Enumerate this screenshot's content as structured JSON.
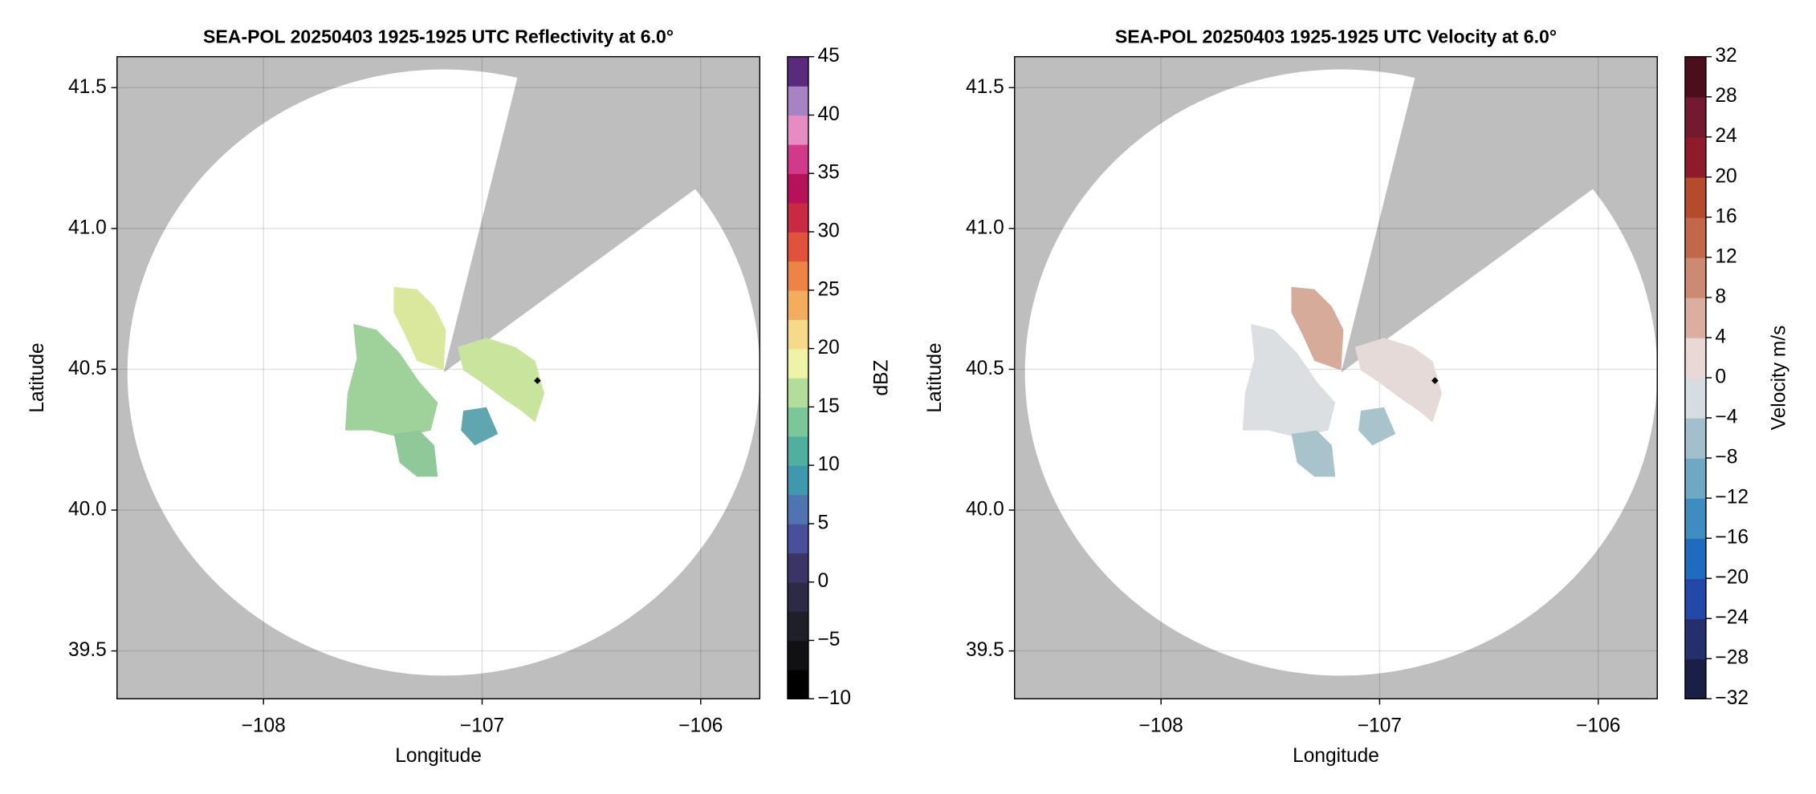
{
  "chart_data": [
    {
      "type": "radar-ppi",
      "title": "SEA-POL 20250403 1925-1925 UTC Reflectivity at 6.0°",
      "xlabel": "Longitude",
      "ylabel": "Latitude",
      "xlim": [
        -108.67,
        -105.73
      ],
      "ylim": [
        39.33,
        41.61
      ],
      "xticks": [
        {
          "value": -108,
          "label": "−108"
        },
        {
          "value": -107,
          "label": "−107"
        },
        {
          "value": -106,
          "label": "−106"
        }
      ],
      "yticks": [
        39.5,
        {
          "value": 40,
          "label": "40.0"
        },
        40.5,
        {
          "value": 41,
          "label": "41.0"
        },
        41.5
      ],
      "grid": true,
      "colorbar": {
        "label": "dBZ",
        "lim": [
          -10,
          45
        ],
        "ticks": [
          {
            "value": -10,
            "label": "−10"
          },
          {
            "value": -5,
            "label": "−5"
          },
          0,
          5,
          10,
          15,
          20,
          25,
          30,
          35,
          40,
          45
        ],
        "colors": [
          "#000000",
          "#111114",
          "#1f1f2a",
          "#2c2a45",
          "#3a3566",
          "#4a4f9a",
          "#4f74b0",
          "#3f98ae",
          "#4fb0a0",
          "#7cc79a",
          "#b3dd9a",
          "#eef3a8",
          "#f7d98a",
          "#f4ad5f",
          "#ee8346",
          "#e0523b",
          "#c92942",
          "#b5125a",
          "#d13a8a",
          "#e68cc2",
          "#a883c4",
          "#5a2a7d"
        ]
      }
    },
    {
      "type": "radar-ppi",
      "title": "SEA-POL 20250403 1925-1925 UTC Velocity at 6.0°",
      "xlabel": "Longitude",
      "ylabel": "Latitude",
      "xlim": [
        -108.67,
        -105.73
      ],
      "ylim": [
        39.33,
        41.61
      ],
      "xticks": [
        {
          "value": -108,
          "label": "−108"
        },
        {
          "value": -107,
          "label": "−107"
        },
        {
          "value": -106,
          "label": "−106"
        }
      ],
      "yticks": [
        39.5,
        {
          "value": 40,
          "label": "40.0"
        },
        40.5,
        {
          "value": 41,
          "label": "41.0"
        },
        41.5
      ],
      "grid": true,
      "colorbar": {
        "label": "Velocity m/s",
        "lim": [
          -32,
          32
        ],
        "ticks": [
          {
            "value": -32,
            "label": "−32"
          },
          {
            "value": -28,
            "label": "−28"
          },
          {
            "value": -24,
            "label": "−24"
          },
          {
            "value": -20,
            "label": "−20"
          },
          {
            "value": -16,
            "label": "−16"
          },
          {
            "value": -12,
            "label": "−12"
          },
          {
            "value": -8,
            "label": "−8"
          },
          {
            "value": -4,
            "label": "−4"
          },
          0,
          4,
          8,
          12,
          16,
          20,
          24,
          28,
          32
        ],
        "colors": [
          "#1a1f45",
          "#24306e",
          "#2448a8",
          "#1e6bbf",
          "#3f8dc0",
          "#6fa8c2",
          "#a3bfcc",
          "#d6dcdf",
          "#e8d8d6",
          "#dbae9f",
          "#cd8a73",
          "#c2684a",
          "#b54a2c",
          "#8f1a2a",
          "#741a30",
          "#4a0e1c"
        ]
      }
    }
  ]
}
